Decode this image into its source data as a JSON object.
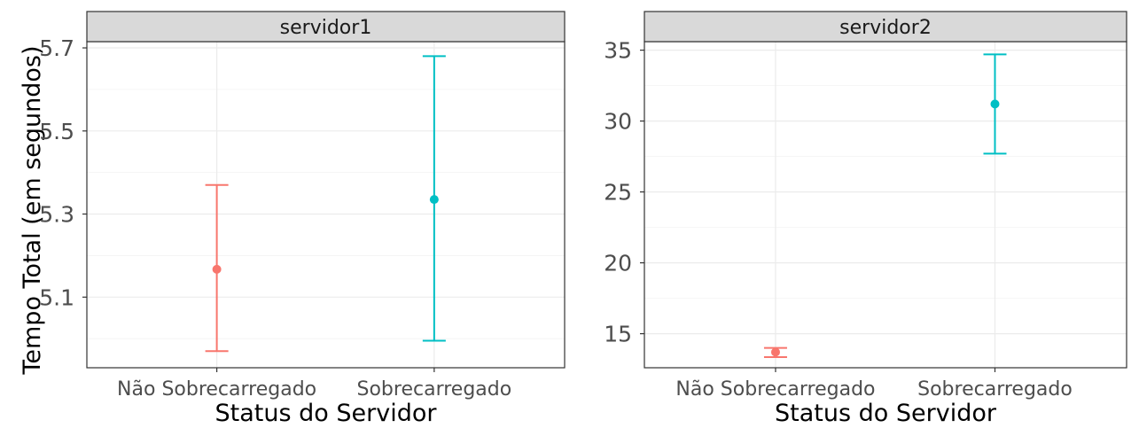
{
  "chart_data": [
    {
      "type": "errorbar",
      "panel": "servidor1",
      "categories": [
        "Não Sobrecarregado",
        "Sobrecarregado"
      ],
      "points": [
        {
          "category": "Não Sobrecarregado",
          "mean": 5.167,
          "lower": 4.97,
          "upper": 5.37,
          "color": "#F8766D"
        },
        {
          "category": "Sobrecarregado",
          "mean": 5.335,
          "lower": 4.995,
          "upper": 5.68,
          "color": "#00BFC4"
        }
      ],
      "ylim": [
        4.93,
        5.715
      ],
      "yticks": [
        {
          "value": 5.1,
          "label": "5.1"
        },
        {
          "value": 5.3,
          "label": "5.3"
        },
        {
          "value": 5.5,
          "label": "5.5"
        },
        {
          "value": 5.7,
          "label": "5.7"
        }
      ],
      "ylabel": "Tempo Total (em segundos)",
      "xlabel": "Status do Servidor"
    },
    {
      "type": "errorbar",
      "panel": "servidor2",
      "categories": [
        "Não Sobrecarregado",
        "Sobrecarregado"
      ],
      "points": [
        {
          "category": "Não Sobrecarregado",
          "mean": 13.7,
          "lower": 13.35,
          "upper": 14.0,
          "color": "#F8766D"
        },
        {
          "category": "Sobrecarregado",
          "mean": 31.2,
          "lower": 27.7,
          "upper": 34.7,
          "color": "#00BFC4"
        }
      ],
      "ylim": [
        12.6,
        35.6
      ],
      "yticks": [
        {
          "value": 15,
          "label": "15"
        },
        {
          "value": 20,
          "label": "20"
        },
        {
          "value": 25,
          "label": "25"
        },
        {
          "value": 30,
          "label": "30"
        },
        {
          "value": 35,
          "label": "35"
        }
      ],
      "ylabel": "",
      "xlabel": "Status do Servidor"
    }
  ]
}
